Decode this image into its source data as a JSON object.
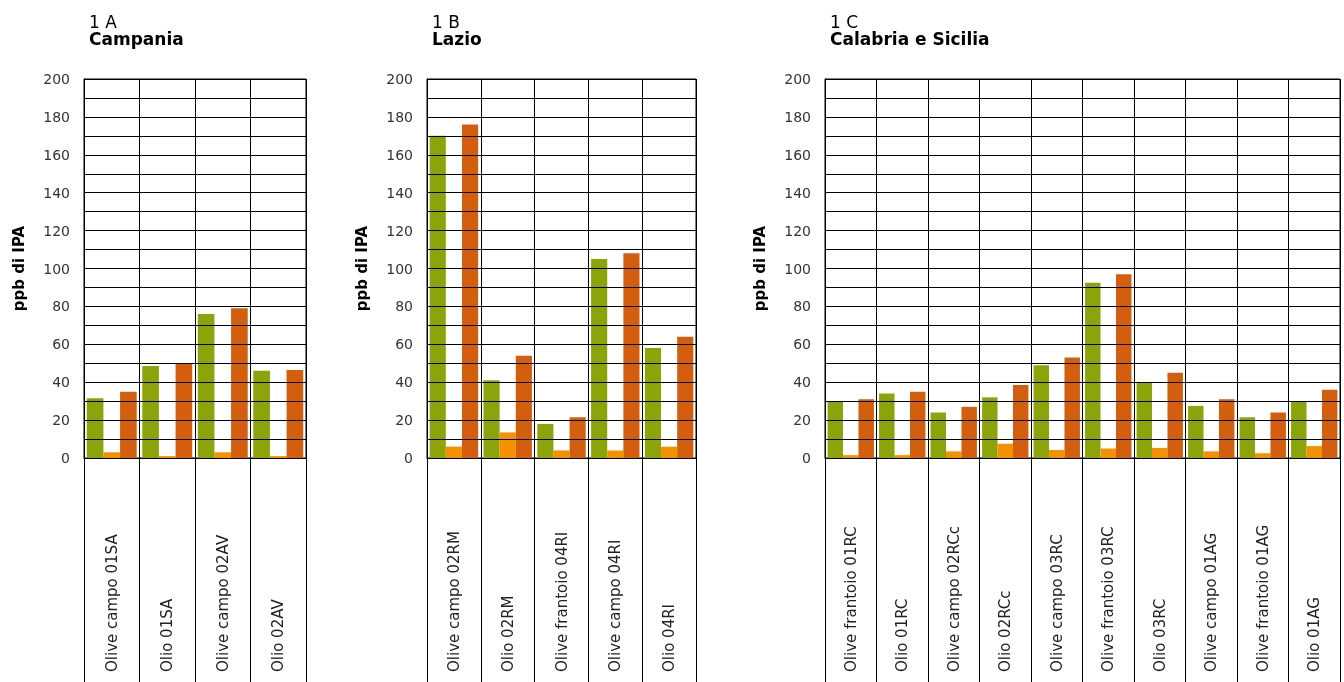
{
  "chart_data": [
    {
      "type": "bar",
      "title": "1 A",
      "subtitle": "Campania",
      "ylabel": "ppb di IPA",
      "grid": true,
      "ylim": [
        0,
        200
      ],
      "yticks": [
        0,
        {
          "value": 10,
          "label": null
        },
        20,
        {
          "value": 30,
          "label": null
        },
        40,
        {
          "value": 50,
          "label": null
        },
        60,
        {
          "value": 70,
          "label": null
        },
        80,
        {
          "value": 90,
          "label": null
        },
        100,
        {
          "value": 110,
          "label": null
        },
        120,
        {
          "value": 130,
          "label": null
        },
        140,
        {
          "value": 150,
          "label": null
        },
        160,
        {
          "value": 170,
          "label": null
        },
        180,
        {
          "value": 190,
          "label": null
        },
        200
      ],
      "categories": [
        "Olive campo 01SA",
        "Olio 01SA",
        "Olive campo 02AV",
        "Olio 02AV"
      ],
      "series": [
        {
          "color": "#8ca40a",
          "values": [
            31.5,
            48.5,
            76,
            46
          ]
        },
        {
          "color": "#f39200",
          "values": [
            3,
            1,
            3,
            1
          ]
        },
        {
          "color": "#d35f0e",
          "values": [
            35,
            50,
            79,
            46.5
          ]
        }
      ]
    },
    {
      "type": "bar",
      "title": "1 B",
      "subtitle": "Lazio",
      "ylabel": "ppb di IPA",
      "grid": true,
      "ylim": [
        0,
        200
      ],
      "yticks": [
        0,
        {
          "value": 10,
          "label": null
        },
        20,
        {
          "value": 30,
          "label": null
        },
        40,
        {
          "value": 50,
          "label": null
        },
        60,
        {
          "value": 70,
          "label": null
        },
        80,
        {
          "value": 90,
          "label": null
        },
        100,
        {
          "value": 110,
          "label": null
        },
        120,
        {
          "value": 130,
          "label": null
        },
        140,
        {
          "value": 150,
          "label": null
        },
        160,
        {
          "value": 170,
          "label": null
        },
        180,
        {
          "value": 190,
          "label": null
        },
        200
      ],
      "categories": [
        "Olive campo 02RM",
        "Olio 02RM",
        "Olive frantoio 04RI",
        "Olive campo 04RI",
        "Olio 04RI"
      ],
      "series": [
        {
          "color": "#8ca40a",
          "values": [
            170,
            41,
            18,
            105,
            58
          ]
        },
        {
          "color": "#f39200",
          "values": [
            6,
            13.5,
            4,
            4,
            6
          ]
        },
        {
          "color": "#d35f0e",
          "values": [
            176,
            54,
            21.5,
            108,
            64
          ]
        }
      ]
    },
    {
      "type": "bar",
      "title": "1 C",
      "subtitle": "Calabria e Sicilia",
      "ylabel": "ppb di IPA",
      "grid": true,
      "ylim": [
        0,
        200
      ],
      "yticks": [
        0,
        {
          "value": 10,
          "label": null
        },
        20,
        {
          "value": 30,
          "label": null
        },
        40,
        {
          "value": 50,
          "label": null
        },
        60,
        {
          "value": 70,
          "label": null
        },
        80,
        {
          "value": 90,
          "label": null
        },
        100,
        {
          "value": 110,
          "label": null
        },
        120,
        {
          "value": 130,
          "label": null
        },
        140,
        {
          "value": 150,
          "label": null
        },
        160,
        {
          "value": 170,
          "label": null
        },
        180,
        {
          "value": 190,
          "label": null
        },
        200
      ],
      "categories": [
        "Olive frantoio 01RC",
        "Olio 01RC",
        "Olive campo 02RCc",
        "Olio 02RCc",
        "Olive campo 03RC",
        "Olive frantoio 03RC",
        "Olio 03RC",
        "Olive campo 01AG",
        "Olive frantoio 01AG",
        "Olio 01AG"
      ],
      "series": [
        {
          "color": "#8ca40a",
          "values": [
            30,
            34,
            24,
            32,
            49,
            92.5,
            40,
            27.5,
            21.5,
            30
          ]
        },
        {
          "color": "#f39200",
          "values": [
            1.5,
            1.5,
            3.5,
            7.5,
            4.2,
            5,
            5.3,
            3.5,
            2.5,
            6.3
          ]
        },
        {
          "color": "#d35f0e",
          "values": [
            31,
            35,
            27,
            38.5,
            53,
            97,
            45,
            31,
            24,
            36
          ]
        }
      ]
    }
  ]
}
